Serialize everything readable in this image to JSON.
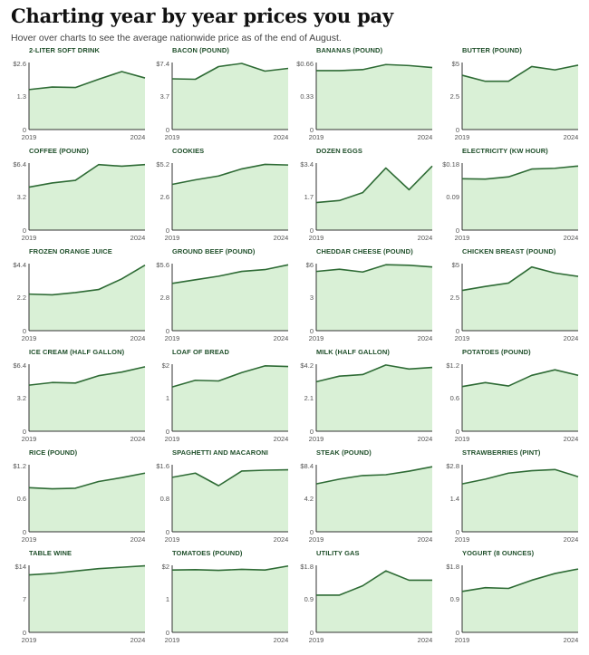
{
  "title": "Charting year by year prices you pay",
  "subtitle": "Hover over charts to see the average nationwide price as of the end of August.",
  "colors": {
    "line": "#2e6b35",
    "fill": "#d9f0d6",
    "axis": "#333333"
  },
  "chart_data": [
    {
      "type": "area",
      "title": "2-LITER SOFT DRINK",
      "x": [
        2019,
        2020,
        2021,
        2022,
        2023,
        2024
      ],
      "values": [
        1.55,
        1.65,
        1.63,
        1.95,
        2.25,
        2.0
      ],
      "ylim": [
        0,
        2.6
      ],
      "yticks": [
        "$2.6",
        "1.3",
        "0"
      ],
      "xticks": [
        "2019",
        "2024"
      ]
    },
    {
      "type": "area",
      "title": "BACON (POUND)",
      "x": [
        2019,
        2020,
        2021,
        2022,
        2023,
        2024
      ],
      "values": [
        5.6,
        5.55,
        6.95,
        7.3,
        6.45,
        6.75
      ],
      "ylim": [
        0,
        7.4
      ],
      "yticks": [
        "$7.4",
        "3.7",
        "0"
      ],
      "xticks": [
        "2019",
        "2024"
      ]
    },
    {
      "type": "area",
      "title": "BANANAS (POUND)",
      "x": [
        2019,
        2020,
        2021,
        2022,
        2023,
        2024
      ],
      "values": [
        0.58,
        0.58,
        0.59,
        0.64,
        0.63,
        0.61
      ],
      "ylim": [
        0,
        0.66
      ],
      "yticks": [
        "$0.66",
        "0.33",
        "0"
      ],
      "xticks": [
        "2019",
        "2024"
      ]
    },
    {
      "type": "area",
      "title": "BUTTER (POUND)",
      "x": [
        2019,
        2020,
        2021,
        2022,
        2023,
        2024
      ],
      "values": [
        4.05,
        3.6,
        3.6,
        4.7,
        4.45,
        4.8
      ],
      "ylim": [
        0,
        5
      ],
      "yticks": [
        "$5",
        "2.5",
        "0"
      ],
      "xticks": [
        "2019",
        "2024"
      ]
    },
    {
      "type": "area",
      "title": "COFFEE (POUND)",
      "x": [
        2019,
        2020,
        2021,
        2022,
        2023,
        2024
      ],
      "values": [
        4.1,
        4.5,
        4.75,
        6.25,
        6.1,
        6.25
      ],
      "ylim": [
        0,
        6.4
      ],
      "yticks": [
        "$6.4",
        "3.2",
        "0"
      ],
      "xticks": [
        "2019",
        "2024"
      ]
    },
    {
      "type": "area",
      "title": "COOKIES",
      "x": [
        2019,
        2020,
        2021,
        2022,
        2023,
        2024
      ],
      "values": [
        3.55,
        3.9,
        4.2,
        4.75,
        5.1,
        5.05
      ],
      "ylim": [
        0,
        5.2
      ],
      "yticks": [
        "$5.2",
        "2.6",
        "0"
      ],
      "xticks": [
        "2019",
        "2024"
      ]
    },
    {
      "type": "area",
      "title": "DOZEN EGGS",
      "x": [
        2019,
        2020,
        2021,
        2022,
        2023,
        2024
      ],
      "values": [
        1.4,
        1.5,
        1.9,
        3.15,
        2.05,
        3.25
      ],
      "ylim": [
        0,
        3.4
      ],
      "yticks": [
        "$3.4",
        "1.7",
        "0"
      ],
      "xticks": [
        "2019",
        "2024"
      ]
    },
    {
      "type": "area",
      "title": "ELECTRICITY (KW HOUR)",
      "x": [
        2019,
        2020,
        2021,
        2022,
        2023,
        2024
      ],
      "values": [
        0.138,
        0.137,
        0.143,
        0.164,
        0.166,
        0.172
      ],
      "ylim": [
        0,
        0.18
      ],
      "yticks": [
        "$0.18",
        "0.09",
        "0"
      ],
      "xticks": [
        "2019",
        "2024"
      ]
    },
    {
      "type": "area",
      "title": "FROZEN ORANGE JUICE",
      "x": [
        2019,
        2020,
        2021,
        2022,
        2023,
        2024
      ],
      "values": [
        2.4,
        2.35,
        2.5,
        2.7,
        3.4,
        4.3
      ],
      "ylim": [
        0,
        4.4
      ],
      "yticks": [
        "$4.4",
        "2.2",
        "0"
      ],
      "xticks": [
        "2019",
        "2024"
      ]
    },
    {
      "type": "area",
      "title": "GROUND BEEF (POUND)",
      "x": [
        2019,
        2020,
        2021,
        2022,
        2023,
        2024
      ],
      "values": [
        3.95,
        4.25,
        4.55,
        4.95,
        5.1,
        5.5
      ],
      "ylim": [
        0,
        5.6
      ],
      "yticks": [
        "$5.6",
        "2.8",
        "0"
      ],
      "xticks": [
        "2019",
        "2024"
      ]
    },
    {
      "type": "area",
      "title": "CHEDDAR CHEESE (POUND)",
      "x": [
        2019,
        2020,
        2021,
        2022,
        2023,
        2024
      ],
      "values": [
        5.3,
        5.5,
        5.25,
        5.9,
        5.85,
        5.7
      ],
      "ylim": [
        0,
        6
      ],
      "yticks": [
        "$6",
        "3",
        "0"
      ],
      "xticks": [
        "2019",
        "2024"
      ]
    },
    {
      "type": "area",
      "title": "CHICKEN BREAST (POUND)",
      "x": [
        2019,
        2020,
        2021,
        2022,
        2023,
        2024
      ],
      "values": [
        3.0,
        3.3,
        3.55,
        4.75,
        4.3,
        4.05
      ],
      "ylim": [
        0,
        5
      ],
      "yticks": [
        "$5",
        "2.5",
        "0"
      ],
      "xticks": [
        "2019",
        "2024"
      ]
    },
    {
      "type": "area",
      "title": "ICE CREAM (HALF GALLON)",
      "x": [
        2019,
        2020,
        2021,
        2022,
        2023,
        2024
      ],
      "values": [
        4.4,
        4.65,
        4.6,
        5.3,
        5.65,
        6.15
      ],
      "ylim": [
        0,
        6.4
      ],
      "yticks": [
        "$6.4",
        "3.2",
        "0"
      ],
      "xticks": [
        "2019",
        "2024"
      ]
    },
    {
      "type": "area",
      "title": "LOAF OF BREAD",
      "x": [
        2019,
        2020,
        2021,
        2022,
        2023,
        2024
      ],
      "values": [
        1.32,
        1.52,
        1.5,
        1.75,
        1.95,
        1.93
      ],
      "ylim": [
        0,
        2
      ],
      "yticks": [
        "$2",
        "1",
        "0"
      ],
      "xticks": [
        "2019",
        "2024"
      ]
    },
    {
      "type": "area",
      "title": "MILK (HALF GALLON)",
      "x": [
        2019,
        2020,
        2021,
        2022,
        2023,
        2024
      ],
      "values": [
        3.1,
        3.45,
        3.55,
        4.15,
        3.9,
        4.0
      ],
      "ylim": [
        0,
        4.2
      ],
      "yticks": [
        "$4.2",
        "2.1",
        "0"
      ],
      "xticks": [
        "2019",
        "2024"
      ]
    },
    {
      "type": "area",
      "title": "POTATOES (POUND)",
      "x": [
        2019,
        2020,
        2021,
        2022,
        2023,
        2024
      ],
      "values": [
        0.8,
        0.87,
        0.81,
        1.0,
        1.1,
        1.0
      ],
      "ylim": [
        0,
        1.2
      ],
      "yticks": [
        "$1.2",
        "0.6",
        "0"
      ],
      "xticks": [
        "2019",
        "2024"
      ]
    },
    {
      "type": "area",
      "title": "RICE (POUND)",
      "x": [
        2019,
        2020,
        2021,
        2022,
        2023,
        2024
      ],
      "values": [
        0.79,
        0.77,
        0.78,
        0.9,
        0.97,
        1.05
      ],
      "ylim": [
        0,
        1.2
      ],
      "yticks": [
        "$1.2",
        "0.6",
        "0"
      ],
      "xticks": [
        "2019",
        "2024"
      ]
    },
    {
      "type": "area",
      "title": "SPAGHETTI AND MACARONI",
      "x": [
        2019,
        2020,
        2021,
        2022,
        2023,
        2024
      ],
      "values": [
        1.3,
        1.4,
        1.1,
        1.45,
        1.47,
        1.48
      ],
      "ylim": [
        0,
        1.6
      ],
      "yticks": [
        "$1.6",
        "0.8",
        "0"
      ],
      "xticks": [
        "2019",
        "2024"
      ]
    },
    {
      "type": "area",
      "title": "STEAK (POUND)",
      "x": [
        2019,
        2020,
        2021,
        2022,
        2023,
        2024
      ],
      "values": [
        6.0,
        6.6,
        7.05,
        7.15,
        7.6,
        8.15
      ],
      "ylim": [
        0,
        8.4
      ],
      "yticks": [
        "$8.4",
        "4.2",
        "0"
      ],
      "xticks": [
        "2019",
        "2024"
      ]
    },
    {
      "type": "area",
      "title": "STRAWBERRIES (PINT)",
      "x": [
        2019,
        2020,
        2021,
        2022,
        2023,
        2024
      ],
      "values": [
        2.0,
        2.2,
        2.45,
        2.55,
        2.6,
        2.3
      ],
      "ylim": [
        0,
        2.8
      ],
      "yticks": [
        "$2.8",
        "1.4",
        "0"
      ],
      "xticks": [
        "2019",
        "2024"
      ]
    },
    {
      "type": "area",
      "title": "TABLE WINE",
      "x": [
        2019,
        2020,
        2021,
        2022,
        2023,
        2024
      ],
      "values": [
        12.0,
        12.3,
        12.8,
        13.3,
        13.6,
        13.9
      ],
      "ylim": [
        0,
        14
      ],
      "yticks": [
        "$14",
        "7",
        "0"
      ],
      "xticks": [
        "2019",
        "2024"
      ]
    },
    {
      "type": "area",
      "title": "TOMATOES (POUND)",
      "x": [
        2019,
        2020,
        2021,
        2022,
        2023,
        2024
      ],
      "values": [
        1.86,
        1.87,
        1.85,
        1.88,
        1.86,
        1.98
      ],
      "ylim": [
        0,
        2
      ],
      "yticks": [
        "$2",
        "1",
        "0"
      ],
      "xticks": [
        "2019",
        "2024"
      ]
    },
    {
      "type": "area",
      "title": "UTILITY GAS",
      "x": [
        2019,
        2020,
        2021,
        2022,
        2023,
        2024
      ],
      "values": [
        1.0,
        1.0,
        1.25,
        1.65,
        1.4,
        1.4
      ],
      "ylim": [
        0,
        1.8
      ],
      "yticks": [
        "$1.8",
        "0.9",
        "0"
      ],
      "xticks": [
        "2019",
        "2024"
      ]
    },
    {
      "type": "area",
      "title": "YOGURT (8 OUNCES)",
      "x": [
        2019,
        2020,
        2021,
        2022,
        2023,
        2024
      ],
      "values": [
        1.1,
        1.2,
        1.18,
        1.4,
        1.58,
        1.7
      ],
      "ylim": [
        0,
        1.8
      ],
      "yticks": [
        "$1.8",
        "0.9",
        "0"
      ],
      "xticks": [
        "2019",
        "2024"
      ]
    }
  ]
}
